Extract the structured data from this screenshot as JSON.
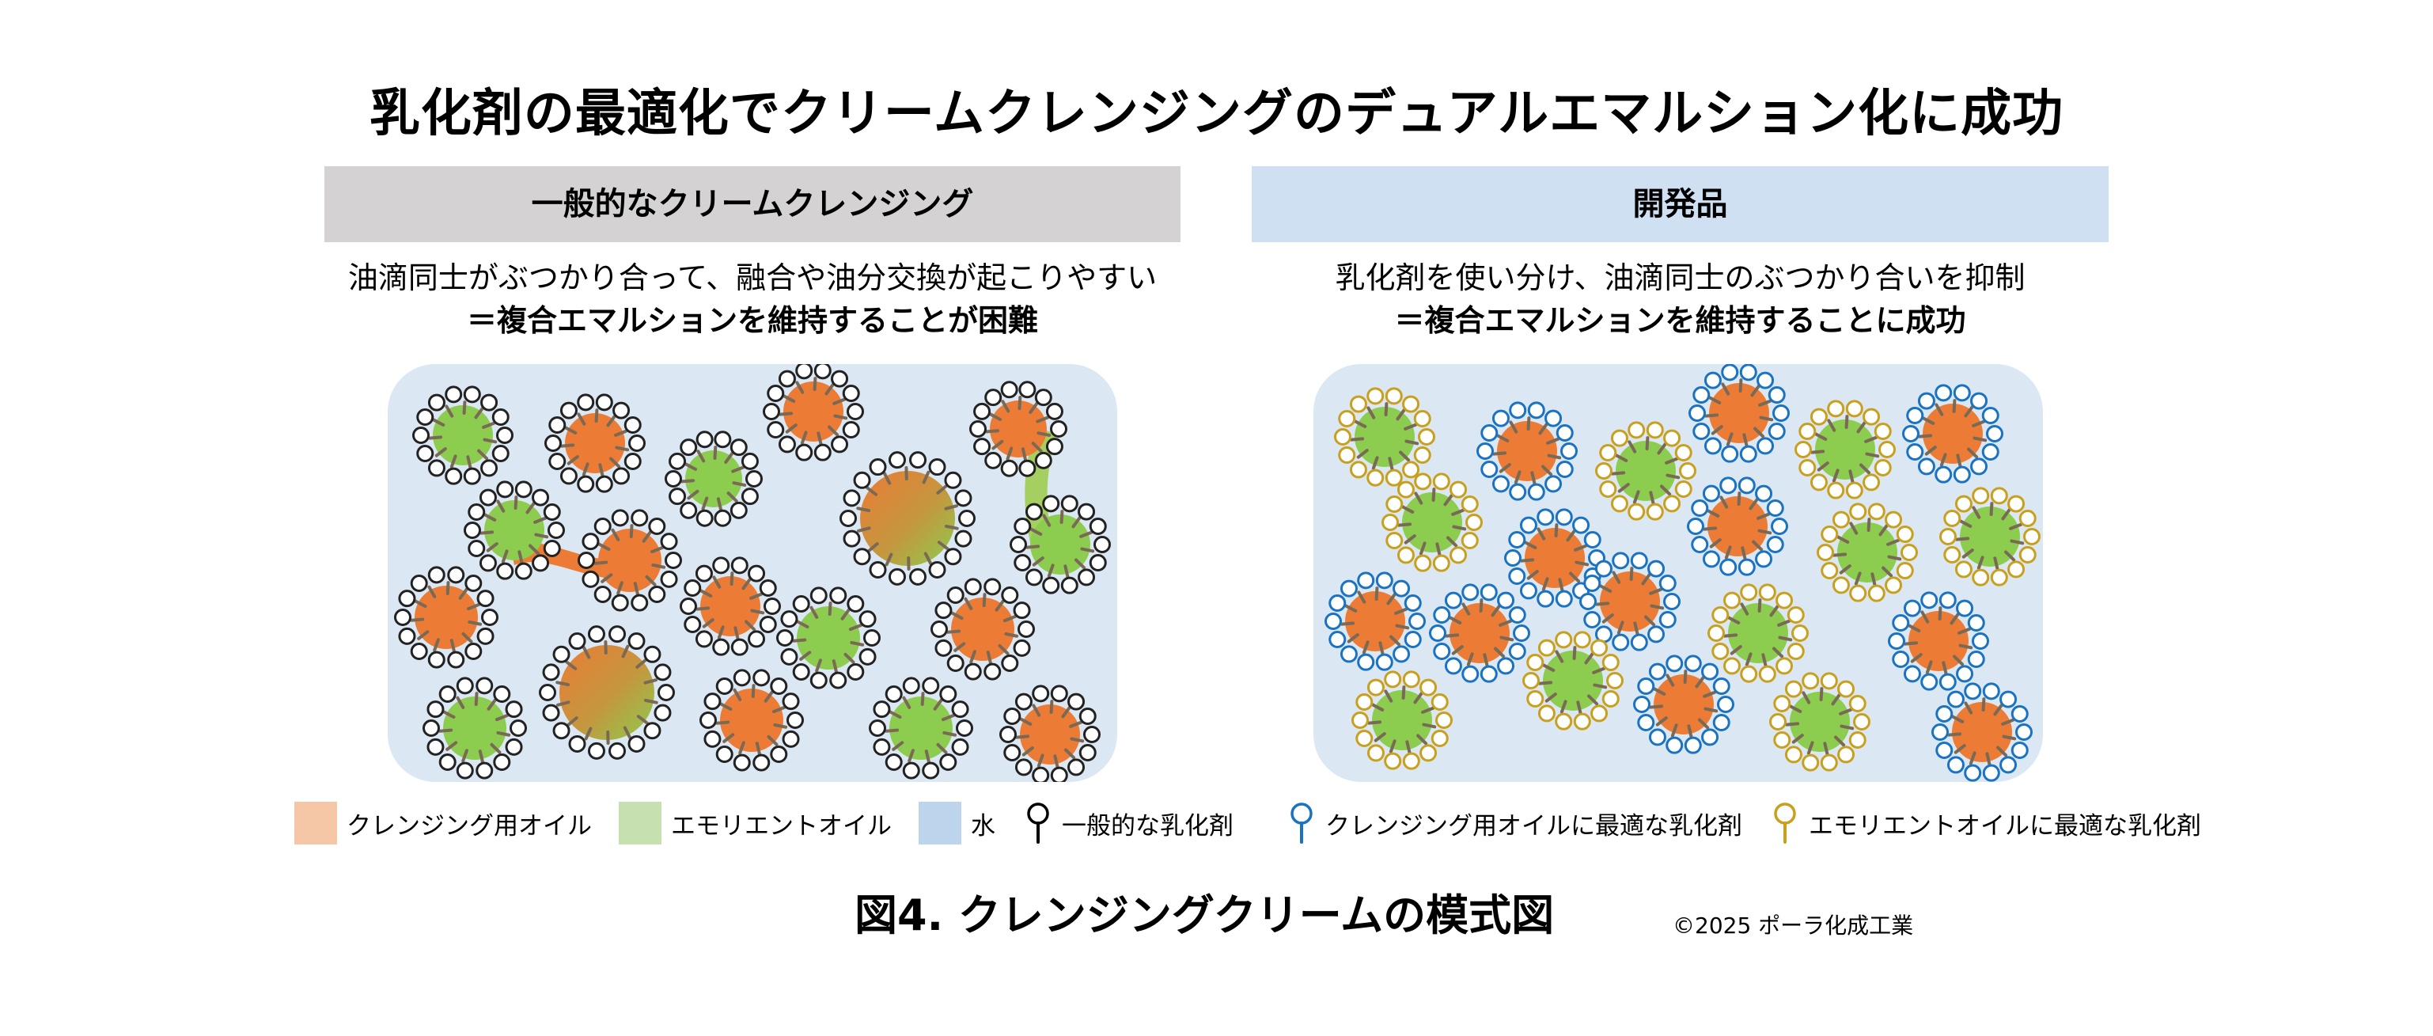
{
  "title": "乳化剤の最適化でクリームクレンジングのデュアルエマルション化に成功",
  "left_panel": {
    "header": "一般的なクリームクレンジング",
    "caption_line1": "油滴同士がぶつかり合って、融合や油分交換が起こりやすい",
    "caption_line2": "＝複合エマルションを維持することが困難"
  },
  "right_panel": {
    "header": "開発品",
    "caption_line1": "乳化剤を使い分け、油滴同士のぶつかり合いを抑制",
    "caption_line2": "＝複合エマルションを維持することに成功"
  },
  "legend_left": [
    {
      "label": "クレンジング用オイル",
      "color": "#f6c7a6",
      "icon": "square-swatch"
    },
    {
      "label": "エモリエントオイル",
      "color": "#c7e0b0",
      "icon": "square-swatch"
    },
    {
      "label": "水",
      "color": "#bcd5ec",
      "icon": "square-swatch"
    },
    {
      "label": "一般的な乳化剤",
      "color": "#000000",
      "icon": "emulsifier-icon"
    }
  ],
  "legend_right": [
    {
      "label": "クレンジング用オイルに最適な乳化剤",
      "color": "#1a73c2",
      "icon": "emulsifier-icon"
    },
    {
      "label": "エモリエントオイルに最適な乳化剤",
      "color": "#c8a01e",
      "icon": "emulsifier-icon"
    }
  ],
  "figure_caption": "図4. クレンジングクリームの模式図",
  "copyright": "©2025 ポーラ化成工業",
  "colors": {
    "cleansing_oil": "#ec7b35",
    "emollient_oil": "#8ccc4e",
    "water_bg": "#dbe8f4",
    "generic_emulsifier": "#000000",
    "cleansing_emulsifier": "#1a73c2",
    "emollient_emulsifier": "#c8a01e",
    "tail": "#7a6a55"
  }
}
